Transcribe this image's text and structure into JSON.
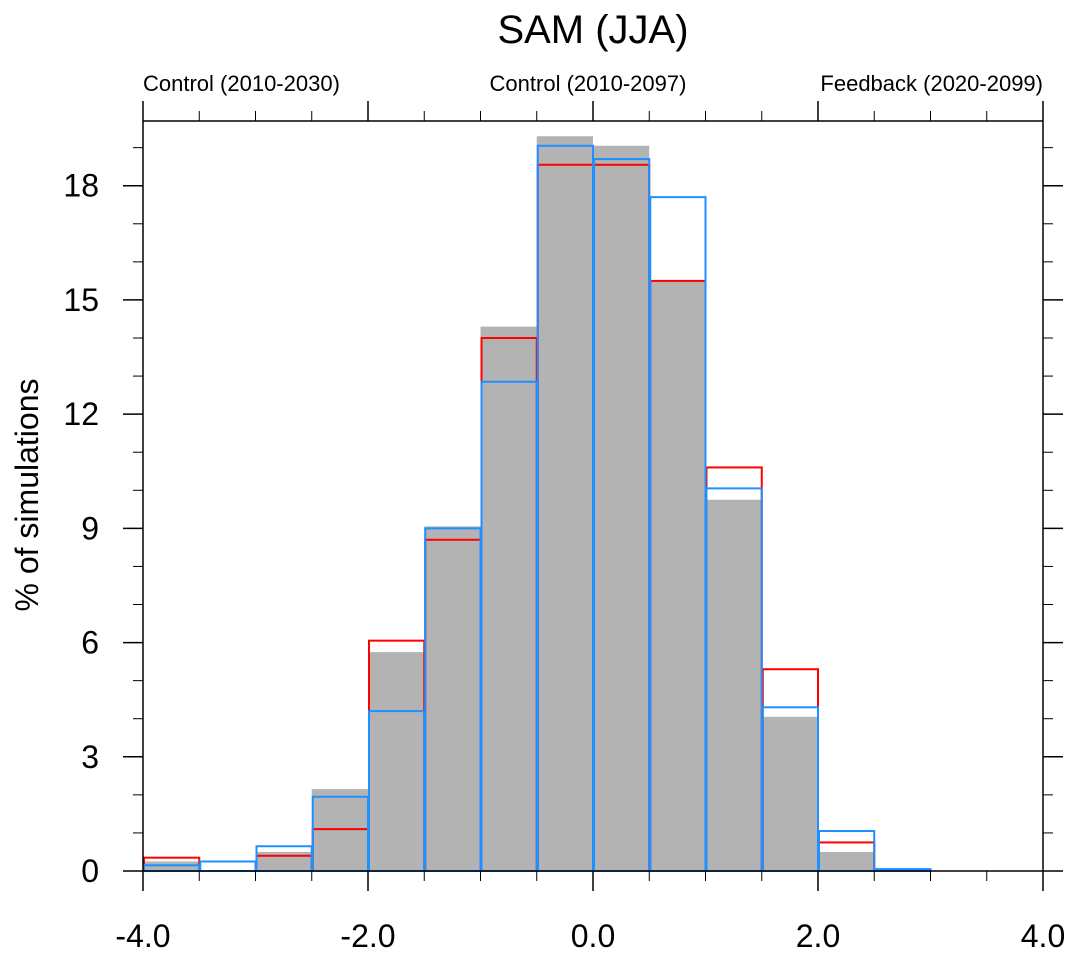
{
  "chart_data": {
    "type": "bar",
    "title": "SAM (JJA)",
    "xlabel": "",
    "ylabel": "% of simulations",
    "xlim": [
      -4.0,
      4.0
    ],
    "ylim": [
      0,
      19.7
    ],
    "x_ticks": [
      "-4.0",
      "-2.0",
      "0.0",
      "2.0",
      "4.0"
    ],
    "y_ticks": [
      "0",
      "3",
      "6",
      "9",
      "12",
      "15",
      "18"
    ],
    "bin_width": 0.5,
    "bin_starts": [
      -4.0,
      -3.5,
      -3.0,
      -2.5,
      -2.0,
      -1.5,
      -1.0,
      -0.5,
      0.0,
      0.5,
      1.0,
      1.5,
      2.0,
      2.5,
      3.0,
      3.5
    ],
    "series": [
      {
        "name": "Control (2010-2030)",
        "style": "filled",
        "color": "#b3b3b3",
        "values": [
          0.25,
          0.0,
          0.5,
          2.15,
          5.75,
          9.05,
          14.3,
          19.3,
          19.05,
          15.5,
          9.75,
          4.05,
          0.5,
          0.0,
          0.0,
          0.0
        ]
      },
      {
        "name": "Control (2010-2097)",
        "style": "outline",
        "color": "#ff0000",
        "values": [
          0.35,
          0.0,
          0.4,
          1.1,
          6.05,
          8.7,
          14.0,
          18.55,
          18.55,
          15.5,
          10.6,
          5.3,
          0.75,
          0.0,
          0.0,
          0.0
        ]
      },
      {
        "name": "Feedback (2020-2099)",
        "style": "outline",
        "color": "#1e90ff",
        "values": [
          0.15,
          0.25,
          0.65,
          1.95,
          4.2,
          9.0,
          12.85,
          19.05,
          18.7,
          17.7,
          10.05,
          4.3,
          1.05,
          0.05,
          0.0,
          0.0
        ]
      }
    ],
    "legend": [
      {
        "label": "Control (2010-2030)",
        "color": "#b3b3b3"
      },
      {
        "label": "Control (2010-2097)",
        "color": "#ff0000"
      },
      {
        "label": "Feedback (2020-2099)",
        "color": "#1e90ff"
      }
    ],
    "legend_position": "top",
    "grid": false
  }
}
